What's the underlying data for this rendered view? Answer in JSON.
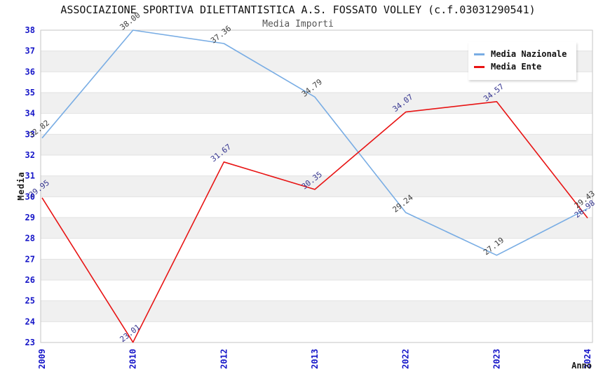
{
  "chart_data": {
    "type": "line",
    "title": "ASSOCIAZIONE SPORTIVA DILETTANTISTICA A.S. FOSSATO VOLLEY (c.f.03031290541)",
    "subtitle": "Media Importi",
    "xlabel": "Anno",
    "ylabel": "Media",
    "x": [
      "2009",
      "2010",
      "2012",
      "2013",
      "2022",
      "2023",
      "2024"
    ],
    "series": [
      {
        "name": "Media Nazionale",
        "color": "#79ade4",
        "label_color": "#3d3d3d",
        "values": [
          32.82,
          38.0,
          37.36,
          34.79,
          29.24,
          27.19,
          29.43
        ]
      },
      {
        "name": "Media Ente",
        "color": "#e81414",
        "label_color": "#363690",
        "values": [
          29.95,
          23.01,
          31.67,
          30.35,
          34.07,
          34.57,
          28.98
        ]
      }
    ],
    "ylim": [
      23,
      38
    ],
    "y_ticks": [
      23,
      24,
      25,
      26,
      27,
      28,
      29,
      30,
      31,
      32,
      33,
      34,
      35,
      36,
      37,
      38
    ],
    "grid": true,
    "band_fill": "#f0f0f0",
    "gridline_color": "#e2e2e2",
    "border_color": "#c6c6c6",
    "tick_label_color": "#1515c8",
    "legend_position": "top-right"
  }
}
